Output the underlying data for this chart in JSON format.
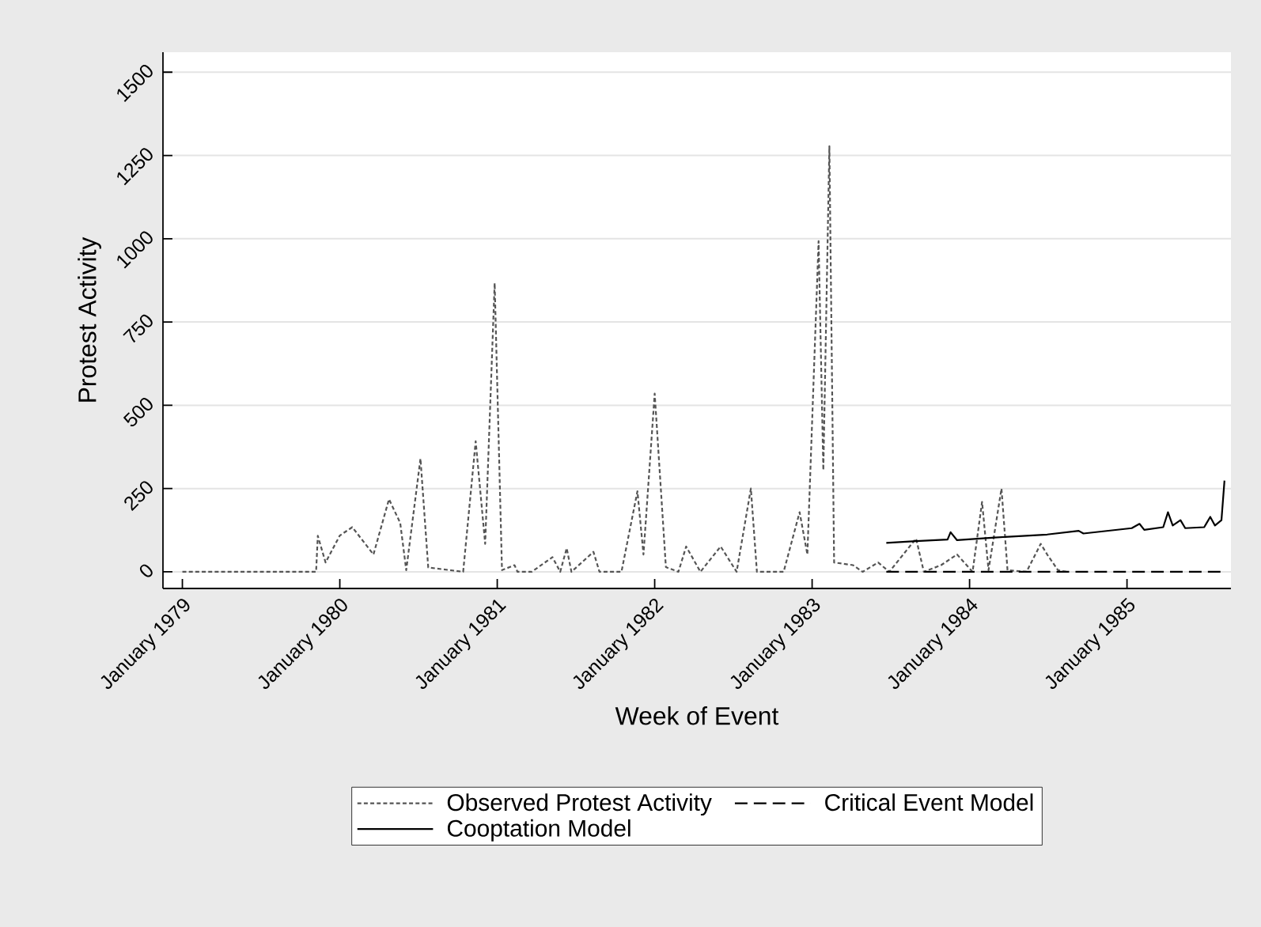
{
  "chart_data": {
    "type": "line",
    "xlabel": "Week of Event",
    "ylabel": "Protest Activity",
    "xlim": [
      "1978-11-17",
      "1985-08-30"
    ],
    "ylim": [
      -50,
      1560
    ],
    "xticks": [
      {
        "value": "1979-01-01",
        "label": "January 1979"
      },
      {
        "value": "1980-01-01",
        "label": "January 1980"
      },
      {
        "value": "1981-01-01",
        "label": "January 1981"
      },
      {
        "value": "1982-01-01",
        "label": "January 1982"
      },
      {
        "value": "1983-01-01",
        "label": "January 1983"
      },
      {
        "value": "1984-01-01",
        "label": "January 1984"
      },
      {
        "value": "1985-01-01",
        "label": "January 1985"
      }
    ],
    "yticks": [
      0,
      250,
      500,
      750,
      1000,
      1250,
      1500
    ],
    "grid": "y",
    "legend": "bottom",
    "series": [
      {
        "name": "Observed Protest Activity",
        "color": "#555555",
        "line_style": "dotted",
        "x": [
          "1979-01-01",
          "1979-11-07",
          "1979-11-11",
          "1979-11-29",
          "1980-01-01",
          "1980-01-30",
          "1980-03-19",
          "1980-04-24",
          "1980-05-20",
          "1980-06-03",
          "1980-07-06",
          "1980-07-24",
          "1980-10-13",
          "1980-11-11",
          "1980-12-03",
          "1980-12-25",
          "1981-01-12",
          "1981-02-10",
          "1981-02-17",
          "1981-03-22",
          "1981-05-09",
          "1981-05-27",
          "1981-06-11",
          "1981-06-22",
          "1981-08-12",
          "1981-08-26",
          "1981-10-16",
          "1981-11-22",
          "1981-12-06",
          "1982-01-01",
          "1982-01-27",
          "1982-02-25",
          "1982-03-15",
          "1982-04-17",
          "1982-06-03",
          "1982-07-10",
          "1982-08-12",
          "1982-08-26",
          "1982-10-27",
          "1982-12-03",
          "1982-12-21",
          "1983-01-16",
          "1983-01-27",
          "1983-02-10",
          "1983-02-21",
          "1983-04-06",
          "1983-04-28",
          "1983-06-03",
          "1983-06-29",
          "1983-08-30",
          "1983-09-17",
          "1983-10-27",
          "1983-12-03",
          "1984-01-08",
          "1984-01-30",
          "1984-02-14",
          "1984-03-15",
          "1984-03-29",
          "1984-05-12",
          "1984-06-14",
          "1984-06-29",
          "1984-07-24",
          "1984-08-12"
        ],
        "values": [
          0,
          0,
          108,
          28,
          109,
          134,
          52,
          218,
          147,
          5,
          340,
          13,
          0,
          392,
          84,
          867,
          5,
          20,
          0,
          0,
          44,
          0,
          71,
          0,
          60,
          0,
          0,
          242,
          52,
          535,
          14,
          0,
          76,
          0,
          76,
          0,
          250,
          0,
          0,
          179,
          52,
          993,
          305,
          1278,
          28,
          20,
          0,
          28,
          0,
          100,
          0,
          20,
          52,
          0,
          210,
          5,
          250,
          5,
          0,
          84,
          52,
          5,
          0
        ]
      },
      {
        "name": "Critical Event Model",
        "color": "#000000",
        "line_style": "dashed",
        "x": [
          "1983-06-22",
          "1984-01-01",
          "1984-07-02",
          "1985-01-01",
          "1985-08-15"
        ],
        "values": [
          0,
          0,
          0,
          0,
          0
        ]
      },
      {
        "name": "Cooptation Model",
        "color": "#000000",
        "line_style": "solid",
        "x": [
          "1983-06-22",
          "1983-08-30",
          "1983-11-11",
          "1983-11-18",
          "1983-12-03",
          "1984-02-28",
          "1984-06-29",
          "1984-09-10",
          "1984-09-21",
          "1985-01-12",
          "1985-01-30",
          "1985-02-10",
          "1985-03-26",
          "1985-04-06",
          "1985-04-17",
          "1985-05-05",
          "1985-05-16",
          "1985-06-29",
          "1985-07-13",
          "1985-07-24",
          "1985-08-08",
          "1985-08-15"
        ],
        "values": [
          87,
          92,
          97,
          119,
          95,
          103,
          112,
          123,
          115,
          131,
          144,
          126,
          134,
          179,
          139,
          155,
          131,
          134,
          165,
          139,
          155,
          274
        ]
      }
    ]
  }
}
